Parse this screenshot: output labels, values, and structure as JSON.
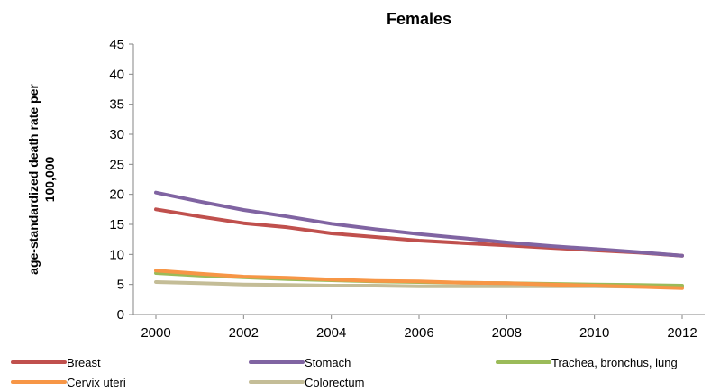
{
  "chart_data": {
    "type": "line",
    "title": "Females",
    "ylabel_line1": "age-standardized death rate per",
    "ylabel_line2": "100,000",
    "xlabel": "",
    "x": [
      2000,
      2001,
      2002,
      2003,
      2004,
      2005,
      2006,
      2007,
      2008,
      2009,
      2010,
      2011,
      2012
    ],
    "x_ticks": [
      "2000",
      "2002",
      "2004",
      "2006",
      "2008",
      "2010",
      "2012"
    ],
    "y_ticks": [
      "0",
      "5",
      "10",
      "15",
      "20",
      "25",
      "30",
      "35",
      "40",
      "45"
    ],
    "ylim": [
      0,
      45
    ],
    "grid": false,
    "legend_position": "bottom",
    "series": [
      {
        "name": "Breast",
        "color": "#c0504d",
        "values": [
          17.5,
          16.3,
          15.2,
          14.5,
          13.5,
          12.9,
          12.3,
          11.9,
          11.5,
          11.1,
          10.7,
          10.3,
          9.8
        ]
      },
      {
        "name": "Stomach",
        "color": "#8064a2",
        "values": [
          20.3,
          18.8,
          17.4,
          16.3,
          15.1,
          14.2,
          13.4,
          12.7,
          12.0,
          11.4,
          10.9,
          10.4,
          9.8
        ]
      },
      {
        "name": "Trachea, bronchus, lung",
        "color": "#9bbb59",
        "values": [
          6.9,
          6.5,
          6.2,
          5.9,
          5.7,
          5.5,
          5.4,
          5.3,
          5.2,
          5.1,
          5.0,
          4.9,
          4.8
        ]
      },
      {
        "name": "Cervix uteri",
        "color": "#f79646",
        "values": [
          7.3,
          6.8,
          6.3,
          6.1,
          5.8,
          5.6,
          5.5,
          5.3,
          5.2,
          5.0,
          4.8,
          4.6,
          4.4
        ]
      },
      {
        "name": "Colorectum",
        "color": "#c4bd97",
        "values": [
          5.4,
          5.2,
          5.0,
          4.9,
          4.8,
          4.8,
          4.7,
          4.7,
          4.7,
          4.7,
          4.7,
          4.6,
          4.6
        ]
      }
    ]
  }
}
